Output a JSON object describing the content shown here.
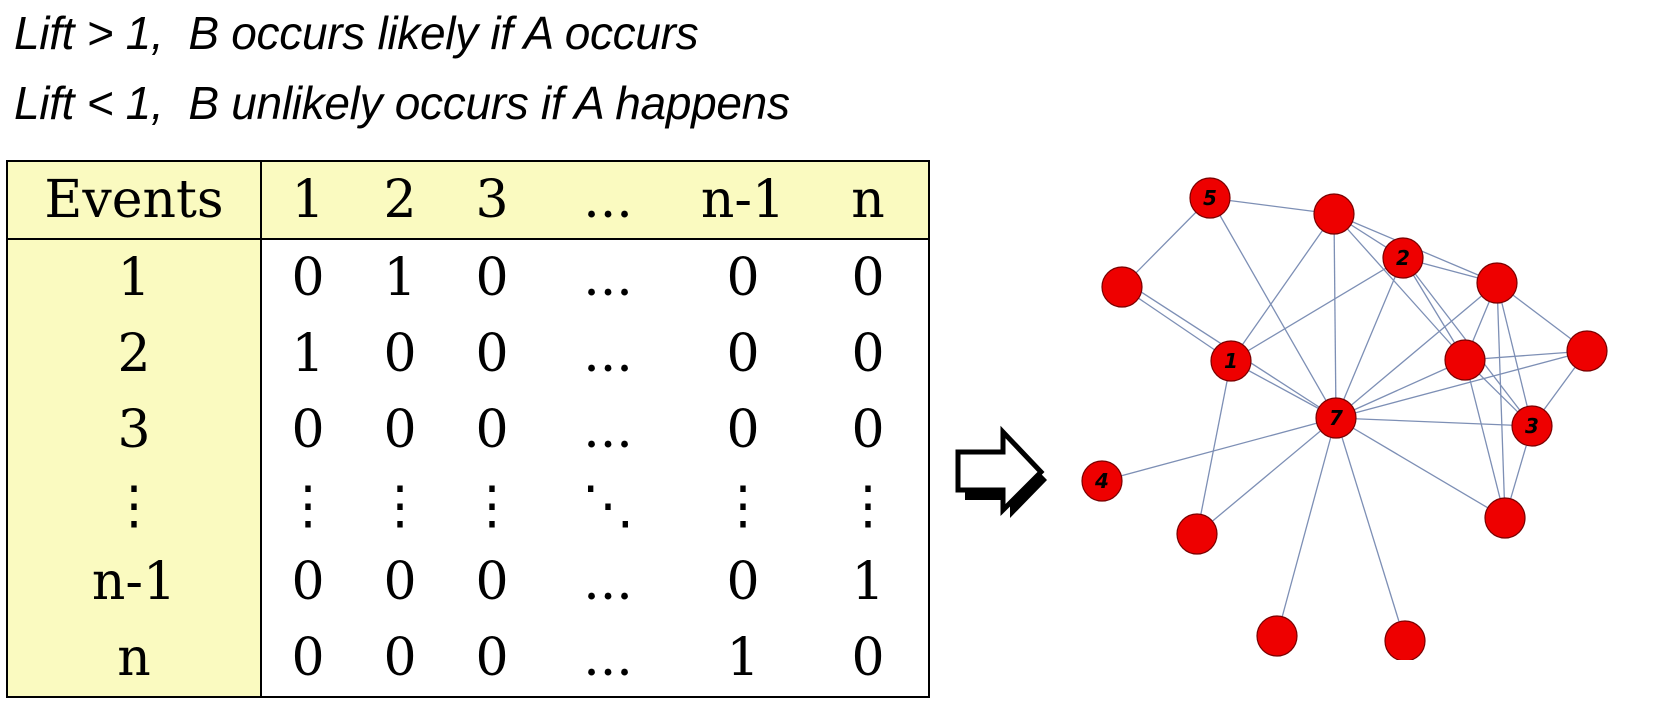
{
  "headings": {
    "line1": "Lift > 1,  B occurs likely if A occurs",
    "line2": "Lift < 1,  B unlikely occurs if A happens"
  },
  "matrix": {
    "corner": "Events",
    "columns": [
      "1",
      "2",
      "3",
      "...",
      "n-1",
      "n"
    ],
    "rows": [
      {
        "label": "1",
        "cells": [
          "0",
          "1",
          "0",
          "...",
          "0",
          "0"
        ]
      },
      {
        "label": "2",
        "cells": [
          "1",
          "0",
          "0",
          "...",
          "0",
          "0"
        ]
      },
      {
        "label": "3",
        "cells": [
          "0",
          "0",
          "0",
          "...",
          "0",
          "0"
        ]
      },
      {
        "label": "⋮",
        "cells": [
          "⋮",
          "⋮",
          "⋮",
          "⋱",
          "⋮",
          "⋮"
        ]
      },
      {
        "label": "n-1",
        "cells": [
          "0",
          "0",
          "0",
          "...",
          "0",
          "1"
        ]
      },
      {
        "label": "n",
        "cells": [
          "0",
          "0",
          "0",
          "...",
          "1",
          "0"
        ]
      }
    ]
  },
  "graph": {
    "node_color": "#ee0000",
    "edge_color": "#7d8fb5",
    "node_labels": [
      "5",
      "2",
      "1",
      "7",
      "3",
      "4"
    ]
  }
}
